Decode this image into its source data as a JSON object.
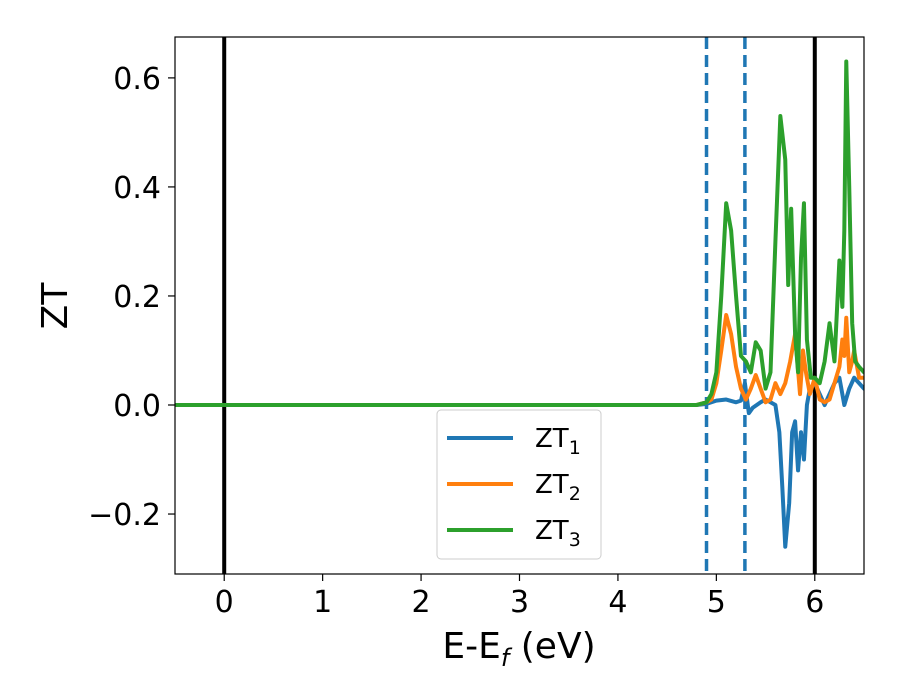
{
  "chart_data": {
    "type": "line",
    "xlabel": "E-E",
    "xlabel_sub": "f",
    "xlabel_suffix": " (eV)",
    "ylabel": "ZT",
    "xlim": [
      -0.5,
      6.5
    ],
    "ylim": [
      -0.31,
      0.675
    ],
    "grid": false,
    "legend_position": "lower-center",
    "x_ticks": [
      {
        "value": 0,
        "label": "0"
      },
      {
        "value": 1,
        "label": "1"
      },
      {
        "value": 2,
        "label": "2"
      },
      {
        "value": 3,
        "label": "3"
      },
      {
        "value": 4,
        "label": "4"
      },
      {
        "value": 5,
        "label": "5"
      },
      {
        "value": 6,
        "label": "6"
      }
    ],
    "y_ticks": [
      {
        "value": -0.2,
        "label": "−0.2"
      },
      {
        "value": 0.0,
        "label": "0.0"
      },
      {
        "value": 0.2,
        "label": "0.2"
      },
      {
        "value": 0.4,
        "label": "0.4"
      },
      {
        "value": 0.6,
        "label": "0.6"
      }
    ],
    "vlines": [
      {
        "x": 0.0,
        "color": "#000000",
        "style": "solid"
      },
      {
        "x": 6.0,
        "color": "#000000",
        "style": "solid"
      },
      {
        "x": 4.9,
        "color": "#1f77b4",
        "style": "dashed"
      },
      {
        "x": 5.29,
        "color": "#1f77b4",
        "style": "dashed"
      }
    ],
    "series": [
      {
        "name": "ZT",
        "sub": "1",
        "color": "#1f77b4",
        "x": [
          -0.5,
          4.8,
          4.9,
          5.0,
          5.1,
          5.2,
          5.25,
          5.29,
          5.33,
          5.37,
          5.45,
          5.5,
          5.55,
          5.6,
          5.64,
          5.67,
          5.7,
          5.74,
          5.77,
          5.8,
          5.83,
          5.86,
          5.89,
          5.92,
          5.95,
          6.0,
          6.05,
          6.1,
          6.15,
          6.2,
          6.25,
          6.3,
          6.35,
          6.4,
          6.45,
          6.5
        ],
        "values": [
          0.0,
          0.0,
          0.002,
          0.008,
          0.01,
          0.005,
          0.008,
          0.04,
          -0.015,
          -0.005,
          0.005,
          0.01,
          0.005,
          0.0,
          -0.05,
          -0.15,
          -0.26,
          -0.18,
          -0.05,
          -0.03,
          -0.12,
          -0.05,
          -0.1,
          0.0,
          0.03,
          0.04,
          0.02,
          0.0,
          0.02,
          0.04,
          0.05,
          0.0,
          0.03,
          0.05,
          0.04,
          0.03
        ]
      },
      {
        "name": "ZT",
        "sub": "2",
        "color": "#ff7f0e",
        "x": [
          -0.5,
          4.8,
          4.9,
          4.95,
          5.0,
          5.05,
          5.1,
          5.15,
          5.2,
          5.25,
          5.3,
          5.35,
          5.4,
          5.45,
          5.5,
          5.55,
          5.6,
          5.65,
          5.7,
          5.75,
          5.8,
          5.85,
          5.88,
          5.91,
          5.95,
          6.0,
          6.05,
          6.1,
          6.15,
          6.2,
          6.25,
          6.28,
          6.3,
          6.32,
          6.35,
          6.38,
          6.4,
          6.45,
          6.5
        ],
        "values": [
          0.0,
          0.0,
          0.005,
          0.01,
          0.04,
          0.1,
          0.165,
          0.13,
          0.07,
          0.03,
          0.01,
          0.03,
          0.055,
          0.03,
          0.005,
          0.01,
          0.04,
          0.02,
          0.04,
          0.08,
          0.13,
          0.02,
          0.1,
          0.06,
          0.02,
          0.05,
          0.01,
          0.005,
          0.01,
          0.04,
          0.07,
          0.12,
          0.09,
          0.16,
          0.06,
          0.08,
          0.1,
          0.05,
          0.05
        ]
      },
      {
        "name": "ZT",
        "sub": "3",
        "color": "#2ca02c",
        "x": [
          -0.5,
          4.8,
          4.9,
          4.95,
          5.0,
          5.05,
          5.1,
          5.15,
          5.2,
          5.25,
          5.3,
          5.35,
          5.4,
          5.45,
          5.5,
          5.55,
          5.6,
          5.65,
          5.7,
          5.73,
          5.76,
          5.8,
          5.83,
          5.86,
          5.89,
          5.92,
          5.96,
          6.0,
          6.05,
          6.1,
          6.15,
          6.2,
          6.25,
          6.28,
          6.3,
          6.32,
          6.35,
          6.38,
          6.41,
          6.45,
          6.5
        ],
        "values": [
          0.0,
          0.0,
          0.005,
          0.02,
          0.06,
          0.2,
          0.37,
          0.32,
          0.2,
          0.09,
          0.08,
          0.06,
          0.115,
          0.1,
          0.03,
          0.06,
          0.3,
          0.53,
          0.45,
          0.22,
          0.36,
          0.13,
          0.06,
          0.27,
          0.37,
          0.12,
          0.05,
          0.05,
          0.04,
          0.08,
          0.15,
          0.08,
          0.265,
          0.18,
          0.32,
          0.63,
          0.4,
          0.15,
          0.08,
          0.07,
          0.06
        ]
      }
    ]
  }
}
